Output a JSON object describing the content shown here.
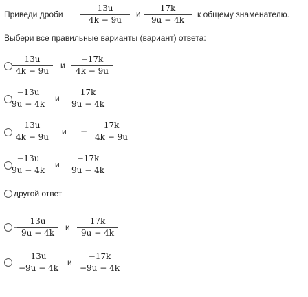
{
  "question": {
    "prefix": "Приведи дроби",
    "conj": "и",
    "suffix": "к общему знаменателю.",
    "frac_a": {
      "num": "13u",
      "den": "4k − 9u"
    },
    "frac_b": {
      "num": "17k",
      "den": "9u − 4k"
    }
  },
  "instruction": "Выбери все правильные варианты (вариант) ответа:",
  "options": [
    {
      "f1": {
        "num": "13u",
        "den": "4k − 9u"
      },
      "conj": "и",
      "f2": {
        "num": "−17k",
        "den": "4k − 9u"
      }
    },
    {
      "f1": {
        "num": "−13u",
        "den": "9u − 4k"
      },
      "conj": "и",
      "f2": {
        "num": "17k",
        "den": "9u − 4k"
      }
    },
    {
      "f1": {
        "num": "13u",
        "den": "4k − 9u"
      },
      "conj": "и",
      "f2": {
        "num": "17k",
        "den": "4k − 9u"
      },
      "f2_sign": "−"
    },
    {
      "f1": {
        "num": "−13u",
        "den": "9u − 4k"
      },
      "conj": "и",
      "f2": {
        "num": "−17k",
        "den": "9u − 4k"
      }
    },
    {
      "label": "другой ответ"
    },
    {
      "f1": {
        "num": "13u",
        "den": "9u − 4k"
      },
      "f1_sign": "−",
      "conj": "и",
      "f2": {
        "num": "17k",
        "den": "9u − 4k"
      }
    },
    {
      "f1": {
        "num": "13u",
        "den": "−9u − 4k"
      },
      "conj": "и",
      "f2": {
        "num": "−17k",
        "den": "−9u − 4k"
      }
    }
  ]
}
